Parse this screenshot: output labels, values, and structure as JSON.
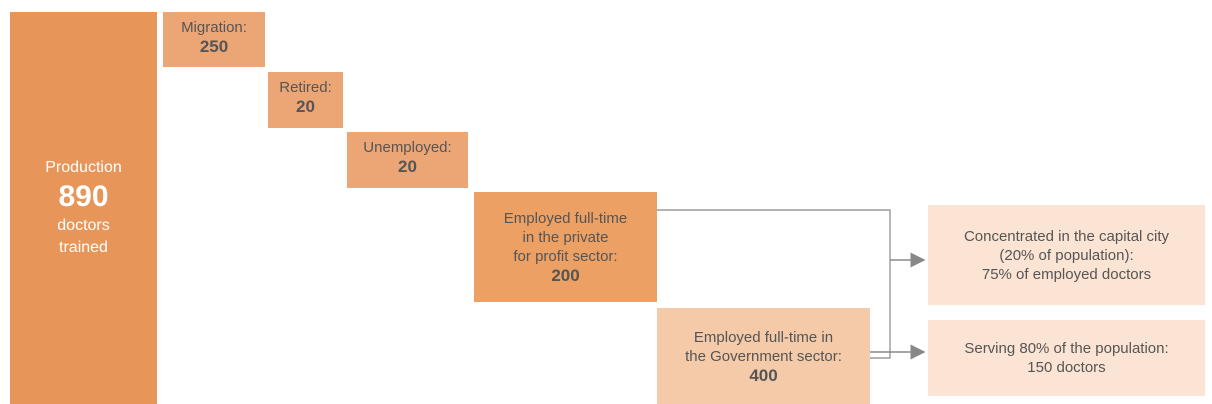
{
  "production": {
    "label": "Production",
    "value": 890,
    "lines": [
      "doctors",
      "trained"
    ]
  },
  "outflows": [
    {
      "label": "Migration:",
      "value": 250
    },
    {
      "label": "Retired:",
      "value": 20
    },
    {
      "label": "Unemployed:",
      "value": 20
    }
  ],
  "employed": [
    {
      "lines": [
        "Employed full-time",
        "in the private",
        "for profit sector:"
      ],
      "value": 200
    },
    {
      "lines": [
        "Employed full-time in",
        "the Government sector:"
      ],
      "value": 400
    }
  ],
  "outcomes": [
    {
      "lines": [
        "Concentrated in the capital city",
        "(20% of population):",
        "75% of employed doctors"
      ]
    },
    {
      "lines": [
        "Serving 80% of the population:",
        "150 doctors"
      ]
    }
  ]
}
